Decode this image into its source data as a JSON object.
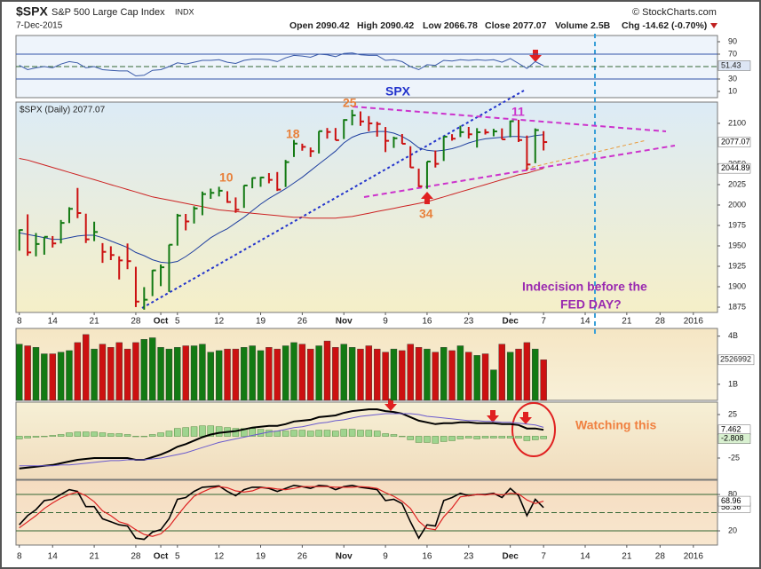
{
  "header": {
    "symbol": "$SPX",
    "name": "S&P 500 Large Cap Index",
    "exchange": "INDX",
    "date": "7-Dec-2015",
    "copyright": "© StockCharts.com",
    "open": "Open 2090.42",
    "high": "High 2090.42",
    "low": "Low 2066.78",
    "close": "Close 2077.07",
    "volume": "Volume 2.5B",
    "change": "Chg -14.62 (-0.70%)"
  },
  "annotations": {
    "spx": "SPX",
    "n25": "25",
    "n18": "18",
    "n10": "10",
    "n34": "34",
    "n11": "11",
    "note1": "Indecision before the",
    "note2": "FED  DAY?",
    "watch": "Watching this"
  },
  "chart_data": [
    {
      "type": "line",
      "color": "#3a5aa8",
      "ylim": [
        0,
        100
      ],
      "yticks": [
        10,
        30,
        70,
        90
      ],
      "levels": [
        30,
        70
      ],
      "values": [
        52,
        45,
        48,
        50,
        48,
        54,
        58,
        56,
        48,
        50,
        45,
        44,
        43,
        43,
        35,
        36,
        44,
        45,
        50,
        56,
        54,
        57,
        60,
        60,
        61,
        57,
        55,
        60,
        62,
        62,
        61,
        58,
        64,
        68,
        67,
        65,
        70,
        69,
        66,
        71,
        72,
        69,
        68,
        68,
        60,
        61,
        58,
        50,
        45,
        53,
        52,
        60,
        59,
        61,
        60,
        61,
        60,
        61,
        57,
        63,
        55,
        47,
        58,
        51.43
      ]
    },
    {
      "type": "ohlc",
      "title": "$SPX (Daily) 2077.07",
      "up_color": "#137a13",
      "down_color": "#cc1111",
      "xlim": [
        -0.4,
        83.9
      ],
      "xticks": [
        {
          "value": 0,
          "label": "8"
        },
        {
          "value": 4,
          "label": "14"
        },
        {
          "value": 9,
          "label": "21"
        },
        {
          "value": 14,
          "label": "28"
        },
        {
          "value": 17,
          "label": "Oct"
        },
        {
          "value": 19,
          "label": "5"
        },
        {
          "value": 24,
          "label": "12"
        },
        {
          "value": 29,
          "label": "19"
        },
        {
          "value": 34,
          "label": "26"
        },
        {
          "value": 39,
          "label": "Nov"
        },
        {
          "value": 44,
          "label": "9"
        },
        {
          "value": 49,
          "label": "16"
        },
        {
          "value": 54,
          "label": "23"
        },
        {
          "value": 59,
          "label": "Dec"
        },
        {
          "value": 63,
          "label": "7"
        },
        {
          "value": 68,
          "label": "14"
        },
        {
          "value": 73,
          "label": "21"
        },
        {
          "value": 77,
          "label": "28"
        },
        {
          "value": 81,
          "label": "2016"
        }
      ],
      "ylim": [
        1868.5,
        2126
      ],
      "yticks": [
        1875,
        1900,
        1925,
        1950,
        1975,
        2000,
        2025,
        2050,
        2100
      ],
      "high": [
        1970.0,
        1988.6,
        1965.7,
        1961.1,
        1962.0,
        1981.7,
        1997.3,
        2020.9,
        1989.4,
        1979.6,
        1953.4,
        1949.5,
        1937.2,
        1952.9,
        1924.4,
        1899.5,
        1920.5,
        1927.2,
        1951.4,
        1989.2,
        1989.1,
        1998.5,
        2016.5,
        2020.1,
        2022.3,
        2016.9,
        2009.3,
        2024.2,
        2033.5,
        2034.5,
        2039.1,
        2040.4,
        2055.2,
        2079.7,
        2075.1,
        2070.4,
        2090.4,
        2094.3,
        2094.3,
        2105.0,
        2116.5,
        2114.6,
        2108.8,
        2101.9,
        2095.5,
        2083.7,
        2086.9,
        2072.0,
        2044.6,
        2053.2,
        2066.7,
        2083.6,
        2086.7,
        2097.1,
        2095.6,
        2094.1,
        2093.0,
        2093.3,
        2093.8,
        2103.4,
        2104.3,
        2085.0,
        2093.8,
        2090.4
      ],
      "low": [
        1944.1,
        1937.9,
        1937.2,
        1939.2,
        1948.0,
        1953.0,
        1977.9,
        1983.9,
        1953.5,
        1955.8,
        1929.2,
        1932.6,
        1908.9,
        1921.5,
        1875.1,
        1871.9,
        1888.5,
        1900.7,
        1893.7,
        1950.3,
        1969.0,
        1977.4,
        1987.5,
        2007.6,
        2010.5,
        2002.6,
        1990.5,
        1996.5,
        2020.5,
        2022.3,
        2026.6,
        2017.2,
        2022.0,
        2058.8,
        2066.5,
        2058.8,
        2063.1,
        2081.3,
        2079.3,
        2080.8,
        2097.5,
        2096.9,
        2090.4,
        2083.7,
        2064.8,
        2069.9,
        2074.9,
        2045.7,
        2022.0,
        2019.9,
        2045.9,
        2053.9,
        2078.8,
        2083.2,
        2081.4,
        2070.3,
        2086.3,
        2084.1,
        2080.4,
        2082.9,
        2077.1,
        2042.4,
        2051.2,
        2066.8
      ],
      "close": [
        1969.4,
        1942.0,
        1952.3,
        1961.1,
        1953.0,
        1978.1,
        1995.3,
        1990.2,
        1958.0,
        1967.0,
        1942.7,
        1938.8,
        1932.2,
        1931.3,
        1881.8,
        1884.1,
        1920.0,
        1923.8,
        1951.4,
        1987.1,
        1979.9,
        1995.8,
        2013.4,
        2014.9,
        2017.5,
        2003.7,
        1994.2,
        2023.9,
        2033.1,
        2033.7,
        2030.8,
        2018.9,
        2052.5,
        2075.2,
        2071.2,
        2065.9,
        2090.4,
        2089.4,
        2079.4,
        2104.1,
        2109.8,
        2102.3,
        2099.9,
        2099.2,
        2078.6,
        2081.7,
        2075.0,
        2046.0,
        2023.0,
        2053.2,
        2050.4,
        2083.6,
        2081.2,
        2089.2,
        2086.6,
        2089.1,
        2088.9,
        2090.1,
        2080.4,
        2102.6,
        2079.5,
        2049.6,
        2091.7,
        2077.07
      ],
      "series": [
        {
          "color": "#1f3f9f",
          "values": [
            1966,
            1964,
            1962,
            1960,
            1958,
            1958,
            1960,
            1962,
            1963,
            1963,
            1960,
            1956,
            1952,
            1948,
            1942,
            1938,
            1933,
            1930,
            1929,
            1931,
            1937,
            1944,
            1952,
            1960,
            1966,
            1971,
            1978,
            1985,
            1993,
            2001,
            2008,
            2014,
            2020,
            2027,
            2034,
            2042,
            2050,
            2058,
            2066,
            2076,
            2083,
            2087,
            2089,
            2090,
            2090,
            2088,
            2084,
            2078,
            2070,
            2067,
            2066,
            2067,
            2069,
            2072,
            2076,
            2079,
            2081,
            2082,
            2083,
            2084,
            2084,
            2083,
            2085,
            2086
          ]
        },
        {
          "color": "#cc2222",
          "values": [
            2057,
            2055,
            2052,
            2049,
            2046,
            2043,
            2040,
            2037,
            2034,
            2031,
            2028,
            2025,
            2022,
            2019,
            2016,
            2013,
            2010,
            2008,
            2006,
            2004,
            2002,
            2000,
            1998,
            1996,
            1994,
            1993,
            1992,
            1991,
            1990,
            1989,
            1988,
            1987,
            1986,
            1985,
            1985,
            1984,
            1984,
            1984,
            1984,
            1985,
            1986,
            1988,
            1990,
            1992,
            1994,
            1996,
            1998,
            2000,
            2002,
            2004,
            2007,
            2010,
            2013,
            2016,
            2019,
            2022,
            2025,
            2028,
            2031,
            2034,
            2037,
            2039,
            2042,
            2044.89
          ]
        }
      ]
    },
    {
      "type": "bar",
      "ylim": [
        0,
        4.48
      ],
      "yticks": [
        {
          "value": 1,
          "label": "1B"
        },
        {
          "value": 4,
          "label": "4B"
        }
      ],
      "last_label": "2526992",
      "values": [
        3.5,
        3.4,
        3.3,
        2.9,
        2.9,
        3.0,
        3.1,
        3.6,
        4.1,
        3.2,
        3.5,
        3.3,
        3.6,
        3.2,
        3.6,
        3.8,
        3.9,
        3.3,
        3.2,
        3.3,
        3.4,
        3.4,
        3.5,
        3.0,
        3.1,
        3.2,
        3.2,
        3.3,
        3.4,
        3.1,
        3.3,
        3.2,
        3.4,
        3.6,
        3.5,
        3.2,
        3.4,
        3.7,
        3.3,
        3.5,
        3.3,
        3.2,
        3.4,
        3.2,
        3.0,
        3.2,
        3.1,
        3.5,
        3.3,
        3.2,
        3.0,
        3.3,
        3.1,
        3.4,
        3.0,
        2.8,
        2.9,
        1.9,
        3.5,
        3.0,
        3.2,
        3.6,
        3.2,
        2.527
      ]
    },
    {
      "type": "macd",
      "ylim": [
        -49.5,
        39.3
      ],
      "yticks": [
        -25,
        25
      ],
      "hist_color": "#9fd48f",
      "series": [
        {
          "color": "#000000",
          "values": [
            -37,
            -36,
            -35,
            -34,
            -33,
            -31,
            -29,
            -27,
            -26,
            -25,
            -25,
            -25,
            -25,
            -25,
            -27,
            -27,
            -24,
            -21,
            -17,
            -12,
            -9,
            -5,
            -1,
            2,
            4,
            5,
            6,
            8,
            10,
            11,
            12,
            12,
            14,
            17,
            18,
            19,
            22,
            23,
            24,
            27,
            29,
            30,
            31,
            31,
            29,
            28,
            26,
            22,
            18,
            16,
            14,
            15,
            15,
            16,
            16,
            15,
            15,
            15,
            14,
            14,
            13,
            9,
            9,
            7.462
          ]
        },
        {
          "color": "#6a5acd",
          "values": [
            -34,
            -34,
            -34,
            -34,
            -34,
            -33,
            -33,
            -32,
            -31,
            -30,
            -29,
            -28,
            -28,
            -27,
            -27,
            -27,
            -26,
            -25,
            -23,
            -21,
            -19,
            -16,
            -13,
            -10,
            -7,
            -5,
            -3,
            -1,
            1,
            3,
            5,
            6,
            8,
            10,
            11,
            13,
            15,
            16,
            18,
            19,
            21,
            23,
            24,
            25,
            26,
            26,
            26,
            26,
            25,
            23,
            22,
            21,
            20,
            19,
            18,
            18,
            17,
            17,
            16,
            16,
            15,
            14,
            13,
            10.27
          ]
        }
      ],
      "histogram": [
        -3,
        -2,
        -1,
        0,
        1,
        2,
        4,
        5,
        5,
        5,
        4,
        3,
        3,
        2,
        0,
        0,
        2,
        4,
        6,
        9,
        10,
        11,
        12,
        12,
        11,
        10,
        9,
        9,
        9,
        8,
        7,
        6,
        6,
        7,
        7,
        6,
        7,
        7,
        6,
        8,
        8,
        7,
        7,
        6,
        3,
        2,
        0,
        -4,
        -7,
        -7,
        -8,
        -6,
        -5,
        -3,
        -2,
        -3,
        -2,
        -2,
        -2,
        -2,
        -2,
        -5,
        -4,
        -2.808
      ]
    },
    {
      "type": "stochastic",
      "ylim": [
        -3.4,
        103.5
      ],
      "yticks": [
        20,
        80
      ],
      "levels": [
        20,
        80
      ],
      "series": [
        {
          "color": "#000000",
          "values": [
            30,
            45,
            55,
            70,
            72,
            80,
            88,
            85,
            60,
            60,
            40,
            35,
            30,
            28,
            8,
            6,
            18,
            22,
            40,
            72,
            75,
            85,
            92,
            93,
            94,
            85,
            78,
            88,
            92,
            92,
            90,
            85,
            90,
            95,
            93,
            90,
            95,
            94,
            88,
            93,
            95,
            92,
            90,
            88,
            70,
            72,
            65,
            35,
            8,
            30,
            28,
            70,
            75,
            82,
            78,
            80,
            80,
            82,
            75,
            90,
            78,
            45,
            72,
            58.36
          ]
        },
        {
          "color": "#dd2222",
          "values": [
            25,
            35,
            45,
            57,
            66,
            74,
            80,
            84,
            78,
            68,
            53,
            45,
            35,
            31,
            22,
            14,
            11,
            15,
            27,
            45,
            62,
            77,
            84,
            90,
            93,
            91,
            86,
            84,
            86,
            91,
            91,
            89,
            88,
            90,
            93,
            93,
            93,
            93,
            92,
            92,
            92,
            93,
            92,
            90,
            83,
            77,
            69,
            57,
            36,
            24,
            22,
            43,
            58,
            76,
            78,
            80,
            79,
            81,
            79,
            82,
            81,
            71,
            65,
            68.96
          ]
        }
      ]
    }
  ]
}
